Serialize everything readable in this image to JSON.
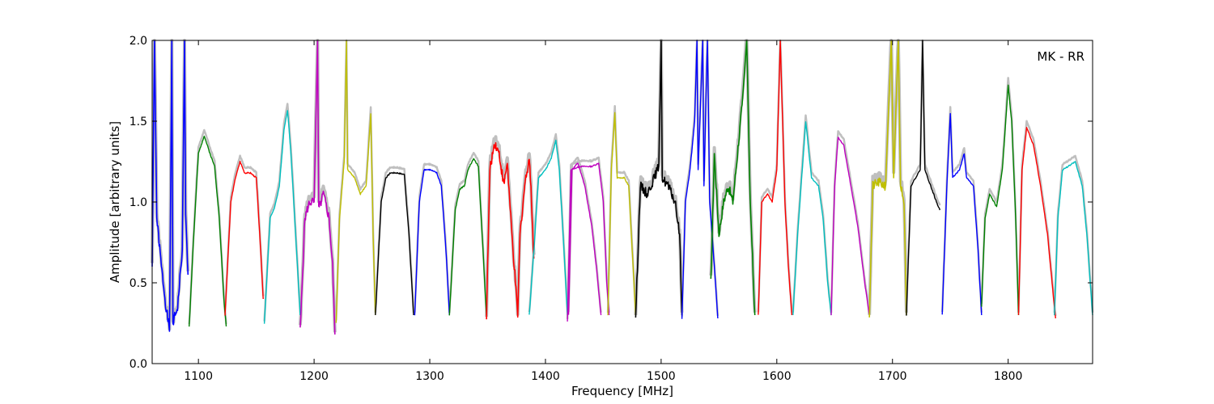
{
  "chart_data": {
    "type": "line",
    "title": "",
    "annotation": "MK - RR",
    "xlabel": "Frequency [MHz]",
    "ylabel": "Amplitude [arbitrary units]",
    "xlim": [
      1060,
      1873
    ],
    "ylim": [
      0.0,
      2.0
    ],
    "xticks": [
      1100,
      1200,
      1300,
      1400,
      1500,
      1600,
      1700,
      1800
    ],
    "yticks": [
      0.0,
      0.5,
      1.0,
      1.5,
      2.0
    ],
    "xtick_labels": [
      "1100",
      "1200",
      "1300",
      "1400",
      "1500",
      "1600",
      "1700",
      "1800"
    ],
    "ytick_labels": [
      "0.0",
      "0.5",
      "1.0",
      "1.5",
      "2.0"
    ],
    "grid": false,
    "background_series_color": "#bfbfbf",
    "palette": [
      "#0000ff",
      "#008000",
      "#ff0000",
      "#00bfbf",
      "#bf00bf",
      "#bfbf00",
      "#000000"
    ],
    "bands": [
      {
        "color": "#0000ff",
        "points": [
          [
            1060,
            0.6
          ],
          [
            1062,
            2.0
          ],
          [
            1064,
            0.9
          ],
          [
            1068,
            0.6
          ],
          [
            1072,
            0.35
          ],
          [
            1075,
            0.2
          ],
          [
            1077,
            2.0
          ],
          [
            1078,
            0.25
          ],
          [
            1082,
            0.35
          ],
          [
            1086,
            0.7
          ],
          [
            1088,
            2.0
          ],
          [
            1089,
            0.9
          ],
          [
            1091,
            0.55
          ]
        ],
        "noisy": true
      },
      {
        "color": "#008000",
        "points": [
          [
            1092,
            0.23
          ],
          [
            1096,
            0.8
          ],
          [
            1100,
            1.3
          ],
          [
            1105,
            1.41
          ],
          [
            1110,
            1.3
          ],
          [
            1114,
            1.22
          ],
          [
            1118,
            0.9
          ],
          [
            1122,
            0.4
          ],
          [
            1124,
            0.23
          ]
        ]
      },
      {
        "color": "#ff0000",
        "points": [
          [
            1123,
            0.3
          ],
          [
            1128,
            1.0
          ],
          [
            1132,
            1.15
          ],
          [
            1136,
            1.25
          ],
          [
            1140,
            1.18
          ],
          [
            1145,
            1.18
          ],
          [
            1150,
            1.15
          ],
          [
            1153,
            0.8
          ],
          [
            1156,
            0.4
          ]
        ]
      },
      {
        "color": "#00bfbf",
        "points": [
          [
            1157,
            0.25
          ],
          [
            1162,
            0.9
          ],
          [
            1166,
            0.97
          ],
          [
            1170,
            1.1
          ],
          [
            1174,
            1.45
          ],
          [
            1177,
            1.57
          ],
          [
            1180,
            1.3
          ],
          [
            1184,
            0.8
          ],
          [
            1188,
            0.3
          ]
        ]
      },
      {
        "color": "#bf00bf",
        "points": [
          [
            1188,
            0.2
          ],
          [
            1192,
            0.9
          ],
          [
            1196,
            1.0
          ],
          [
            1200,
            1.0
          ],
          [
            1203,
            2.0
          ],
          [
            1204,
            0.95
          ],
          [
            1208,
            1.05
          ],
          [
            1213,
            0.9
          ],
          [
            1216,
            0.6
          ],
          [
            1218,
            0.18
          ]
        ],
        "noisy": true
      },
      {
        "color": "#bfbf00",
        "points": [
          [
            1219,
            0.25
          ],
          [
            1222,
            0.9
          ],
          [
            1226,
            1.25
          ],
          [
            1228,
            2.0
          ],
          [
            1229,
            1.2
          ],
          [
            1235,
            1.15
          ],
          [
            1240,
            1.05
          ],
          [
            1245,
            1.1
          ],
          [
            1249,
            1.55
          ],
          [
            1251,
            0.8
          ],
          [
            1253,
            0.3
          ]
        ]
      },
      {
        "color": "#000000",
        "points": [
          [
            1253,
            0.3
          ],
          [
            1258,
            1.0
          ],
          [
            1262,
            1.15
          ],
          [
            1266,
            1.18
          ],
          [
            1272,
            1.18
          ],
          [
            1278,
            1.17
          ],
          [
            1282,
            0.8
          ],
          [
            1286,
            0.3
          ]
        ]
      },
      {
        "color": "#0000ff",
        "points": [
          [
            1287,
            0.3
          ],
          [
            1291,
            1.0
          ],
          [
            1295,
            1.2
          ],
          [
            1300,
            1.2
          ],
          [
            1306,
            1.18
          ],
          [
            1310,
            1.1
          ],
          [
            1314,
            0.7
          ],
          [
            1317,
            0.3
          ]
        ]
      },
      {
        "color": "#008000",
        "points": [
          [
            1317,
            0.3
          ],
          [
            1322,
            0.95
          ],
          [
            1326,
            1.08
          ],
          [
            1330,
            1.1
          ],
          [
            1333,
            1.2
          ],
          [
            1338,
            1.27
          ],
          [
            1342,
            1.22
          ],
          [
            1346,
            0.7
          ],
          [
            1349,
            0.3
          ]
        ]
      },
      {
        "color": "#ff0000",
        "points": [
          [
            1349,
            0.3
          ],
          [
            1352,
            1.2
          ],
          [
            1356,
            1.37
          ],
          [
            1360,
            1.3
          ],
          [
            1364,
            1.1
          ],
          [
            1367,
            1.25
          ],
          [
            1370,
            0.9
          ],
          [
            1373,
            0.6
          ],
          [
            1376,
            0.3
          ],
          [
            1378,
            0.8
          ],
          [
            1382,
            1.1
          ],
          [
            1386,
            1.28
          ],
          [
            1388,
            1.0
          ],
          [
            1390,
            0.65
          ]
        ],
        "noisy": true
      },
      {
        "color": "#00bfbf",
        "points": [
          [
            1386,
            0.3
          ],
          [
            1390,
            0.7
          ],
          [
            1394,
            1.15
          ],
          [
            1400,
            1.2
          ],
          [
            1405,
            1.27
          ],
          [
            1409,
            1.38
          ],
          [
            1412,
            1.2
          ],
          [
            1416,
            0.7
          ],
          [
            1419,
            0.3
          ]
        ]
      },
      {
        "color": "#bf00bf",
        "points": [
          [
            1420,
            0.3
          ],
          [
            1423,
            1.2
          ],
          [
            1428,
            1.24
          ],
          [
            1434,
            1.1
          ],
          [
            1440,
            0.85
          ],
          [
            1444,
            0.6
          ],
          [
            1448,
            0.3
          ]
        ]
      },
      {
        "color": "#bf00bf",
        "points": [
          [
            1419,
            0.26
          ],
          [
            1422,
            1.2
          ],
          [
            1430,
            1.22
          ],
          [
            1440,
            1.22
          ],
          [
            1446,
            1.24
          ],
          [
            1450,
            1.0
          ],
          [
            1453,
            0.5
          ],
          [
            1455,
            0.3
          ]
        ]
      },
      {
        "color": "#bfbf00",
        "points": [
          [
            1454,
            0.3
          ],
          [
            1457,
            1.2
          ],
          [
            1460,
            1.55
          ],
          [
            1462,
            1.15
          ],
          [
            1468,
            1.15
          ],
          [
            1472,
            1.1
          ],
          [
            1475,
            0.7
          ],
          [
            1478,
            0.3
          ]
        ]
      },
      {
        "color": "#000000",
        "points": [
          [
            1478,
            0.3
          ],
          [
            1482,
            1.1
          ],
          [
            1488,
            1.05
          ],
          [
            1494,
            1.15
          ],
          [
            1498,
            1.22
          ],
          [
            1500,
            2.0
          ],
          [
            1501,
            1.15
          ],
          [
            1506,
            1.1
          ],
          [
            1512,
            1.0
          ],
          [
            1516,
            0.8
          ],
          [
            1518,
            0.3
          ]
        ],
        "noisy": true
      },
      {
        "color": "#0000ff",
        "points": [
          [
            1518,
            0.28
          ],
          [
            1521,
            1.0
          ],
          [
            1525,
            1.2
          ],
          [
            1529,
            1.5
          ],
          [
            1531,
            2.0
          ],
          [
            1532,
            1.2
          ],
          [
            1536,
            2.0
          ],
          [
            1537,
            1.1
          ],
          [
            1540,
            2.0
          ],
          [
            1542,
            1.0
          ],
          [
            1546,
            0.6
          ],
          [
            1549,
            0.28
          ]
        ]
      },
      {
        "color": "#008000",
        "points": [
          [
            1543,
            0.5
          ],
          [
            1546,
            1.3
          ],
          [
            1550,
            0.8
          ],
          [
            1554,
            1.0
          ],
          [
            1558,
            1.1
          ],
          [
            1562,
            1.0
          ],
          [
            1566,
            1.3
          ],
          [
            1570,
            1.6
          ],
          [
            1574,
            2.0
          ],
          [
            1577,
            1.0
          ],
          [
            1581,
            0.3
          ]
        ],
        "noisy": true
      },
      {
        "color": "#ff0000",
        "points": [
          [
            1584,
            0.3
          ],
          [
            1587,
            1.0
          ],
          [
            1592,
            1.05
          ],
          [
            1596,
            1.0
          ],
          [
            1600,
            1.2
          ],
          [
            1603,
            2.0
          ],
          [
            1605,
            1.5
          ],
          [
            1607,
            1.0
          ],
          [
            1610,
            0.6
          ],
          [
            1613,
            0.3
          ]
        ]
      },
      {
        "color": "#00bfbf",
        "points": [
          [
            1614,
            0.3
          ],
          [
            1618,
            0.8
          ],
          [
            1622,
            1.2
          ],
          [
            1625,
            1.5
          ],
          [
            1630,
            1.15
          ],
          [
            1636,
            1.1
          ],
          [
            1640,
            0.9
          ],
          [
            1644,
            0.5
          ],
          [
            1647,
            0.3
          ]
        ]
      },
      {
        "color": "#bf00bf",
        "points": [
          [
            1647,
            0.3
          ],
          [
            1650,
            1.1
          ],
          [
            1653,
            1.4
          ],
          [
            1658,
            1.35
          ],
          [
            1664,
            1.1
          ],
          [
            1670,
            0.85
          ],
          [
            1676,
            0.5
          ],
          [
            1680,
            0.3
          ]
        ]
      },
      {
        "color": "#bfbf00",
        "points": [
          [
            1680,
            0.3
          ],
          [
            1683,
            1.1
          ],
          [
            1688,
            1.12
          ],
          [
            1694,
            1.1
          ],
          [
            1699,
            2.0
          ],
          [
            1701,
            1.15
          ],
          [
            1705,
            2.0
          ],
          [
            1707,
            1.1
          ],
          [
            1710,
            1.0
          ],
          [
            1712,
            0.3
          ]
        ],
        "noisy": true
      },
      {
        "color": "#000000",
        "points": [
          [
            1712,
            0.3
          ],
          [
            1716,
            1.1
          ],
          [
            1720,
            1.15
          ],
          [
            1724,
            1.2
          ],
          [
            1726,
            2.0
          ],
          [
            1728,
            1.2
          ],
          [
            1733,
            1.1
          ],
          [
            1738,
            1.0
          ],
          [
            1741,
            0.95
          ]
        ]
      },
      {
        "color": "#0000ff",
        "points": [
          [
            1743,
            0.3
          ],
          [
            1747,
            1.1
          ],
          [
            1750,
            1.55
          ],
          [
            1752,
            1.15
          ],
          [
            1758,
            1.2
          ],
          [
            1762,
            1.3
          ],
          [
            1764,
            1.15
          ],
          [
            1770,
            1.1
          ],
          [
            1774,
            0.7
          ],
          [
            1777,
            0.3
          ]
        ]
      },
      {
        "color": "#008000",
        "points": [
          [
            1777,
            0.35
          ],
          [
            1780,
            0.9
          ],
          [
            1784,
            1.05
          ],
          [
            1790,
            0.97
          ],
          [
            1795,
            1.2
          ],
          [
            1800,
            1.72
          ],
          [
            1803,
            1.5
          ],
          [
            1806,
            1.0
          ],
          [
            1809,
            0.3
          ]
        ]
      },
      {
        "color": "#ff0000",
        "points": [
          [
            1809,
            0.3
          ],
          [
            1812,
            1.2
          ],
          [
            1816,
            1.46
          ],
          [
            1822,
            1.35
          ],
          [
            1828,
            1.1
          ],
          [
            1834,
            0.8
          ],
          [
            1838,
            0.5
          ],
          [
            1841,
            0.28
          ]
        ]
      },
      {
        "color": "#00bfbf",
        "points": [
          [
            1840,
            0.3
          ],
          [
            1843,
            0.9
          ],
          [
            1847,
            1.2
          ],
          [
            1852,
            1.22
          ],
          [
            1858,
            1.25
          ],
          [
            1864,
            1.1
          ],
          [
            1868,
            0.8
          ],
          [
            1873,
            0.3
          ]
        ]
      }
    ]
  }
}
